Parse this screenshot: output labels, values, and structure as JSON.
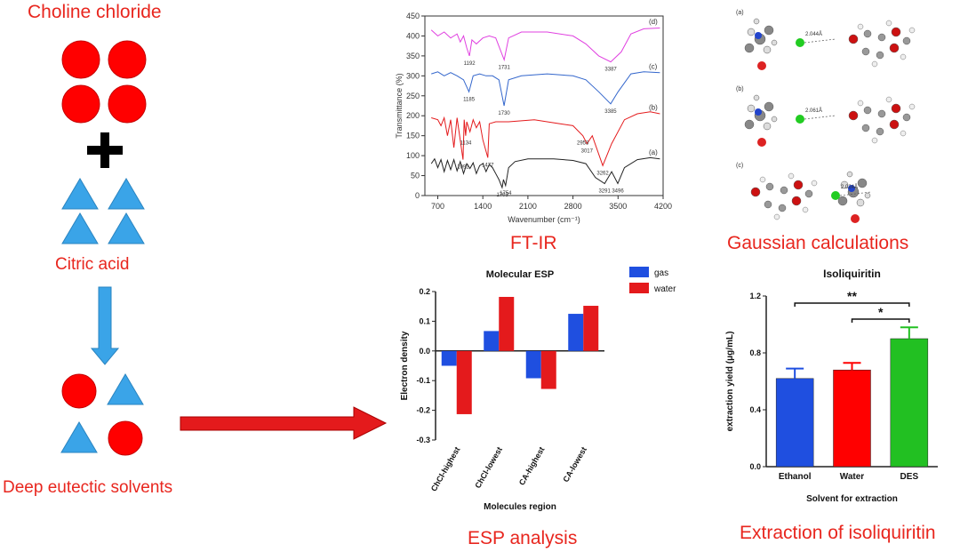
{
  "left": {
    "title_top": "Choline chloride",
    "title_mid": "Citric acid",
    "title_bottom": "Deep eutectic solvents"
  },
  "section_labels": {
    "ftir": "FT-IR",
    "gaussian": "Gaussian calculations",
    "esp": "ESP analysis",
    "extraction": "Extraction of isoliquiritin"
  },
  "colors": {
    "circle": "#ff0000",
    "triangle": "#3aa4e8",
    "arrow_red": "#e41a1c",
    "arrow_blue": "#3aa4e8",
    "title_red": "#e8261e"
  },
  "chart_data": [
    {
      "type": "line",
      "name": "FT-IR",
      "xlabel": "Wavenumber (cm⁻¹)",
      "ylabel": "Transmittance (%)",
      "xlim": [
        500,
        4200
      ],
      "ylim": [
        0,
        450
      ],
      "xticks": [
        "700",
        "1400",
        "2100",
        "2800",
        "3500",
        "4200"
      ],
      "yticks": [
        "0",
        "50",
        "100",
        "150",
        "200",
        "250",
        "300",
        "350",
        "400",
        "450"
      ],
      "series": [
        {
          "label": "(a)",
          "color": "#222222",
          "points": [
            [
              600,
              80
            ],
            [
              650,
              92
            ],
            [
              700,
              70
            ],
            [
              750,
              90
            ],
            [
              800,
              60
            ],
            [
              850,
              88
            ],
            [
              900,
              65
            ],
            [
              950,
              90
            ],
            [
              1000,
              62
            ],
            [
              1050,
              85
            ],
            [
              1100,
              55
            ],
            [
              1150,
              80
            ],
            [
              1200,
              68
            ],
            [
              1250,
              82
            ],
            [
              1300,
              55
            ],
            [
              1350,
              75
            ],
            [
              1400,
              80
            ],
            [
              1450,
              60
            ],
            [
              1500,
              78
            ],
            [
              1550,
              70
            ],
            [
              1600,
              55
            ],
            [
              1650,
              40
            ],
            [
              1700,
              20
            ],
            [
              1720,
              40
            ],
            [
              1754,
              25
            ],
            [
              1800,
              70
            ],
            [
              1900,
              85
            ],
            [
              2100,
              92
            ],
            [
              2500,
              92
            ],
            [
              2800,
              88
            ],
            [
              3000,
              80
            ],
            [
              3150,
              45
            ],
            [
              3291,
              30
            ],
            [
              3400,
              60
            ],
            [
              3496,
              30
            ],
            [
              3600,
              70
            ],
            [
              3800,
              90
            ],
            [
              4000,
              95
            ],
            [
              4150,
              92
            ]
          ],
          "annotations": [
            {
              "x": 1703,
              "y": 20,
              "text": "1703"
            },
            {
              "x": 1754,
              "y": 25,
              "text": "1754"
            },
            {
              "x": 3291,
              "y": 30,
              "text": "3291"
            },
            {
              "x": 3496,
              "y": 30,
              "text": "3496"
            }
          ]
        },
        {
          "label": "(b)",
          "color": "#e41a1c",
          "points": [
            [
              600,
              195
            ],
            [
              700,
              190
            ],
            [
              750,
              175
            ],
            [
              800,
              195
            ],
            [
              850,
              150
            ],
            [
              900,
              190
            ],
            [
              950,
              120
            ],
            [
              1000,
              195
            ],
            [
              1092,
              90
            ],
            [
              1110,
              190
            ],
            [
              1134,
              150
            ],
            [
              1150,
              185
            ],
            [
              1200,
              160
            ],
            [
              1250,
              190
            ],
            [
              1300,
              170
            ],
            [
              1350,
              185
            ],
            [
              1400,
              140
            ],
            [
              1477,
              95
            ],
            [
              1500,
              180
            ],
            [
              1600,
              185
            ],
            [
              1800,
              185
            ],
            [
              2200,
              190
            ],
            [
              2600,
              180
            ],
            [
              2800,
              175
            ],
            [
              2953,
              150
            ],
            [
              3017,
              130
            ],
            [
              3100,
              150
            ],
            [
              3262,
              75
            ],
            [
              3400,
              130
            ],
            [
              3600,
              190
            ],
            [
              3800,
              205
            ],
            [
              4000,
              210
            ],
            [
              4150,
              205
            ]
          ],
          "annotations": [
            {
              "x": 1092,
              "y": 90,
              "text": "1092"
            },
            {
              "x": 1134,
              "y": 150,
              "text": "1134"
            },
            {
              "x": 1477,
              "y": 95,
              "text": "1477"
            },
            {
              "x": 2953,
              "y": 150,
              "text": "2953"
            },
            {
              "x": 3017,
              "y": 130,
              "text": "3017"
            },
            {
              "x": 3262,
              "y": 75,
              "text": "3262"
            }
          ]
        },
        {
          "label": "(c)",
          "color": "#3366cc",
          "points": [
            [
              600,
              305
            ],
            [
              700,
              310
            ],
            [
              800,
              300
            ],
            [
              900,
              308
            ],
            [
              1000,
              300
            ],
            [
              1100,
              290
            ],
            [
              1185,
              260
            ],
            [
              1250,
              300
            ],
            [
              1350,
              305
            ],
            [
              1450,
              300
            ],
            [
              1550,
              300
            ],
            [
              1650,
              290
            ],
            [
              1730,
              225
            ],
            [
              1800,
              290
            ],
            [
              2000,
              300
            ],
            [
              2400,
              305
            ],
            [
              2800,
              300
            ],
            [
              3000,
              290
            ],
            [
              3200,
              260
            ],
            [
              3385,
              230
            ],
            [
              3500,
              260
            ],
            [
              3700,
              305
            ],
            [
              3900,
              310
            ],
            [
              4150,
              308
            ]
          ],
          "annotations": [
            {
              "x": 1185,
              "y": 260,
              "text": "1185"
            },
            {
              "x": 1730,
              "y": 225,
              "text": "1730"
            },
            {
              "x": 3385,
              "y": 230,
              "text": "3385"
            }
          ]
        },
        {
          "label": "(d)",
          "color": "#e040e0",
          "points": [
            [
              600,
              415
            ],
            [
              700,
              400
            ],
            [
              800,
              410
            ],
            [
              900,
              395
            ],
            [
              1000,
              405
            ],
            [
              1050,
              385
            ],
            [
              1100,
              400
            ],
            [
              1150,
              370
            ],
            [
              1192,
              350
            ],
            [
              1230,
              390
            ],
            [
              1300,
              380
            ],
            [
              1400,
              395
            ],
            [
              1500,
              400
            ],
            [
              1600,
              395
            ],
            [
              1731,
              340
            ],
            [
              1800,
              395
            ],
            [
              2000,
              410
            ],
            [
              2400,
              410
            ],
            [
              2800,
              400
            ],
            [
              3000,
              380
            ],
            [
              3200,
              350
            ],
            [
              3387,
              335
            ],
            [
              3550,
              360
            ],
            [
              3700,
              405
            ],
            [
              3900,
              418
            ],
            [
              4150,
              420
            ]
          ],
          "annotations": [
            {
              "x": 1192,
              "y": 350,
              "text": "1192"
            },
            {
              "x": 1731,
              "y": 340,
              "text": "1731"
            },
            {
              "x": 3387,
              "y": 335,
              "text": "3387"
            }
          ]
        }
      ]
    },
    {
      "type": "bar",
      "title": "Molecular ESP",
      "xlabel": "Molecules region",
      "ylabel": "Electron density",
      "ylim": [
        -0.3,
        0.2
      ],
      "yticks": [
        "0.2",
        "0.1",
        "0.0",
        "-0.1",
        "-0.2",
        "-0.3"
      ],
      "categories": [
        "ChCl-highest",
        "ChCl-lowest",
        "CA-highest",
        "CA-lowest"
      ],
      "series": [
        {
          "name": "gas",
          "color": "#1f4fe0",
          "values": [
            -0.05,
            0.067,
            -0.092,
            0.125
          ]
        },
        {
          "name": "water",
          "color": "#e41a1c",
          "values": [
            -0.213,
            0.182,
            -0.128,
            0.152
          ]
        }
      ]
    },
    {
      "type": "bar",
      "title": "Isoliquiritin",
      "xlabel": "Solvent for extraction",
      "ylabel": "extraction yield (μg/mL)",
      "ylim": [
        0,
        1.2
      ],
      "yticks": [
        "1.2",
        "0.8",
        "0.4",
        "0.0"
      ],
      "categories": [
        "Ethanol",
        "Water",
        "DES"
      ],
      "values": [
        0.62,
        0.68,
        0.9
      ],
      "errors": [
        0.07,
        0.05,
        0.08
      ],
      "colors": [
        "#1f4fe0",
        "#ff0000",
        "#22c022"
      ],
      "significance": [
        {
          "from": 0,
          "to": 2,
          "label": "**"
        },
        {
          "from": 1,
          "to": 2,
          "label": "*"
        }
      ]
    }
  ]
}
